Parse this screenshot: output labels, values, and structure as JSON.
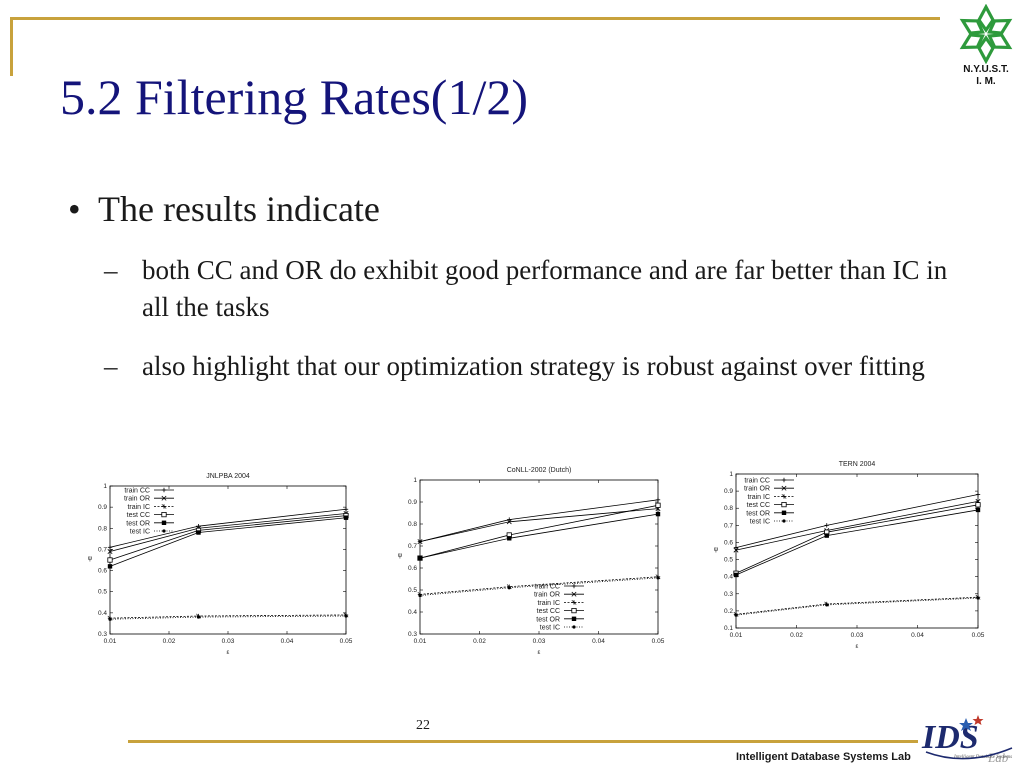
{
  "slide": {
    "title": "5.2 Filtering Rates(1/2)",
    "bullet": "The results indicate",
    "subbullets": [
      "both CC and OR do exhibit good performance and are far better than IC in all the tasks",
      "also highlight that our optimization strategy is robust against over fitting"
    ],
    "dash": "–",
    "bullet_symbol": "•",
    "page_number": "22",
    "footer": "Intelligent Database Systems Lab",
    "logo_text": [
      "N.Y.U.S.T.",
      "I. M."
    ],
    "logo_color": "#2e9a3c",
    "title_color": "#14147a",
    "frame_color": "#c8a23c",
    "ids_logo_text": "IDS",
    "ids_logo_sub": "Lab",
    "ids_logo_tagline": "Intelligent Database Systems"
  },
  "chart_data": [
    {
      "type": "line",
      "title": "JNLPBA 2004",
      "xlabel": "ε",
      "ylabel": "ψ",
      "xlim": [
        0.01,
        0.05
      ],
      "ylim": [
        0.3,
        1
      ],
      "xticks": [
        "0.01",
        "0.02",
        "0.03",
        "0.04",
        "0.05"
      ],
      "yticks": [
        "0.3",
        "0.4",
        "0.5",
        "0.6",
        "0.7",
        "0.8",
        "0.9",
        "1"
      ],
      "legend": "top-left",
      "x": [
        0.01,
        0.025,
        0.05
      ],
      "series": [
        {
          "name": "train CC",
          "values": [
            0.71,
            0.81,
            0.89
          ]
        },
        {
          "name": "train OR",
          "values": [
            0.69,
            0.8,
            0.87
          ]
        },
        {
          "name": "train IC",
          "values": [
            0.375,
            0.385,
            0.39
          ]
        },
        {
          "name": "test CC",
          "values": [
            0.65,
            0.79,
            0.86
          ]
        },
        {
          "name": "test OR",
          "values": [
            0.62,
            0.78,
            0.85
          ]
        },
        {
          "name": "test IC",
          "values": [
            0.37,
            0.38,
            0.385
          ]
        }
      ]
    },
    {
      "type": "line",
      "title": "CoNLL-2002 (Dutch)",
      "xlabel": "ε",
      "ylabel": "ψ",
      "xlim": [
        0.01,
        0.05
      ],
      "ylim": [
        0.3,
        1
      ],
      "xticks": [
        "0.01",
        "0.02",
        "0.03",
        "0.04",
        "0.05"
      ],
      "yticks": [
        "0.3",
        "0.4",
        "0.5",
        "0.6",
        "0.7",
        "0.8",
        "0.9",
        "1"
      ],
      "legend": "bottom-right",
      "x": [
        0.01,
        0.025,
        0.05
      ],
      "series": [
        {
          "name": "train CC",
          "values": [
            0.72,
            0.82,
            0.91
          ]
        },
        {
          "name": "train OR",
          "values": [
            0.72,
            0.81,
            0.87
          ]
        },
        {
          "name": "train IC",
          "values": [
            0.48,
            0.515,
            0.56
          ]
        },
        {
          "name": "test CC",
          "values": [
            0.645,
            0.75,
            0.885
          ]
        },
        {
          "name": "test OR",
          "values": [
            0.645,
            0.735,
            0.845
          ]
        },
        {
          "name": "test IC",
          "values": [
            0.475,
            0.51,
            0.555
          ]
        }
      ]
    },
    {
      "type": "line",
      "title": "TERN 2004",
      "xlabel": "ε",
      "ylabel": "ψ",
      "xlim": [
        0.01,
        0.05
      ],
      "ylim": [
        0.1,
        1
      ],
      "xticks": [
        "0.01",
        "0.02",
        "0.03",
        "0.04",
        "0.05"
      ],
      "yticks": [
        "0.1",
        "0.2",
        "0.3",
        "0.4",
        "0.5",
        "0.6",
        "0.7",
        "0.8",
        "0.9",
        "1"
      ],
      "legend": "top-left",
      "x": [
        0.01,
        0.025,
        0.05
      ],
      "series": [
        {
          "name": "train CC",
          "values": [
            0.57,
            0.7,
            0.88
          ]
        },
        {
          "name": "train OR",
          "values": [
            0.555,
            0.67,
            0.84
          ]
        },
        {
          "name": "train IC",
          "values": [
            0.18,
            0.24,
            0.28
          ]
        },
        {
          "name": "test CC",
          "values": [
            0.42,
            0.66,
            0.82
          ]
        },
        {
          "name": "test OR",
          "values": [
            0.41,
            0.64,
            0.79
          ]
        },
        {
          "name": "test IC",
          "values": [
            0.175,
            0.235,
            0.275
          ]
        }
      ]
    }
  ]
}
